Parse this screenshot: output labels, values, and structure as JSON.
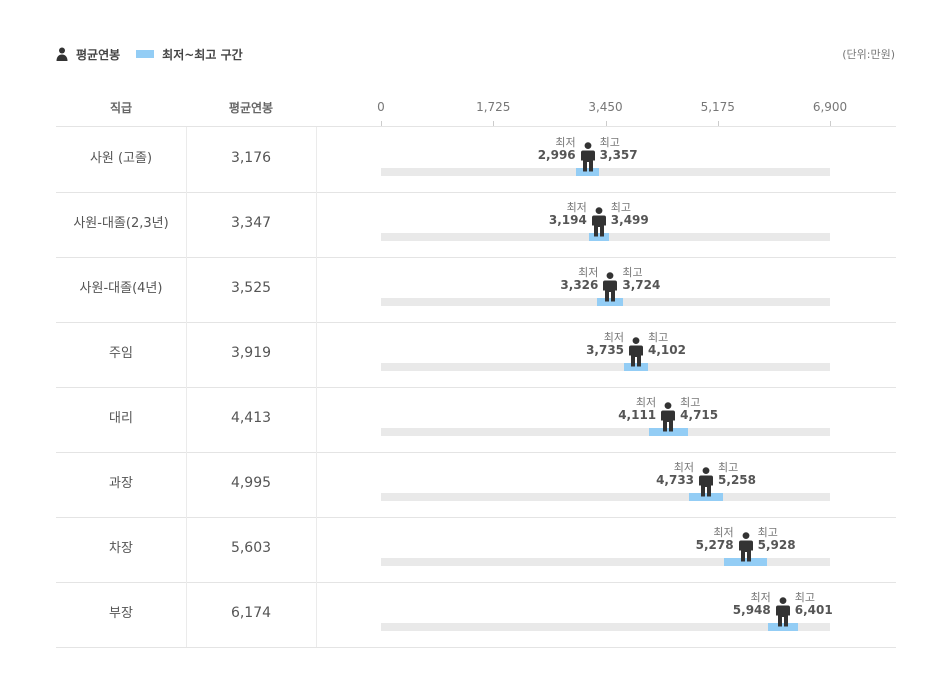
{
  "legend": {
    "avg_label": "평균연봉",
    "range_label": "최저~최고 구간",
    "unit": "(단위:만원)"
  },
  "columns": {
    "grade": "직급",
    "avg": "평균연봉"
  },
  "labels": {
    "min": "최저",
    "max": "최고"
  },
  "colors": {
    "range": "#93cdf5",
    "track": "#e9e9e9",
    "person": "#333333"
  },
  "chart_data": {
    "type": "range",
    "xlim": [
      0,
      6900
    ],
    "ticks": [
      "0",
      "1,725",
      "3,450",
      "5,175",
      "6,900"
    ],
    "tick_values": [
      0,
      1725,
      3450,
      5175,
      6900
    ],
    "rows": [
      {
        "grade": "사원 (고졸)",
        "avg": 3176,
        "avg_text": "3,176",
        "min": 2996,
        "min_text": "2,996",
        "max": 3357,
        "max_text": "3,357"
      },
      {
        "grade": "사원-대졸(2,3년)",
        "avg": 3347,
        "avg_text": "3,347",
        "min": 3194,
        "min_text": "3,194",
        "max": 3499,
        "max_text": "3,499"
      },
      {
        "grade": "사원-대졸(4년)",
        "avg": 3525,
        "avg_text": "3,525",
        "min": 3326,
        "min_text": "3,326",
        "max": 3724,
        "max_text": "3,724"
      },
      {
        "grade": "주임",
        "avg": 3919,
        "avg_text": "3,919",
        "min": 3735,
        "min_text": "3,735",
        "max": 4102,
        "max_text": "4,102"
      },
      {
        "grade": "대리",
        "avg": 4413,
        "avg_text": "4,413",
        "min": 4111,
        "min_text": "4,111",
        "max": 4715,
        "max_text": "4,715"
      },
      {
        "grade": "과장",
        "avg": 4995,
        "avg_text": "4,995",
        "min": 4733,
        "min_text": "4,733",
        "max": 5258,
        "max_text": "5,258"
      },
      {
        "grade": "차장",
        "avg": 5603,
        "avg_text": "5,603",
        "min": 5278,
        "min_text": "5,278",
        "max": 5928,
        "max_text": "5,928"
      },
      {
        "grade": "부장",
        "avg": 6174,
        "avg_text": "6,174",
        "min": 5948,
        "min_text": "5,948",
        "max": 6401,
        "max_text": "6,401"
      }
    ]
  }
}
